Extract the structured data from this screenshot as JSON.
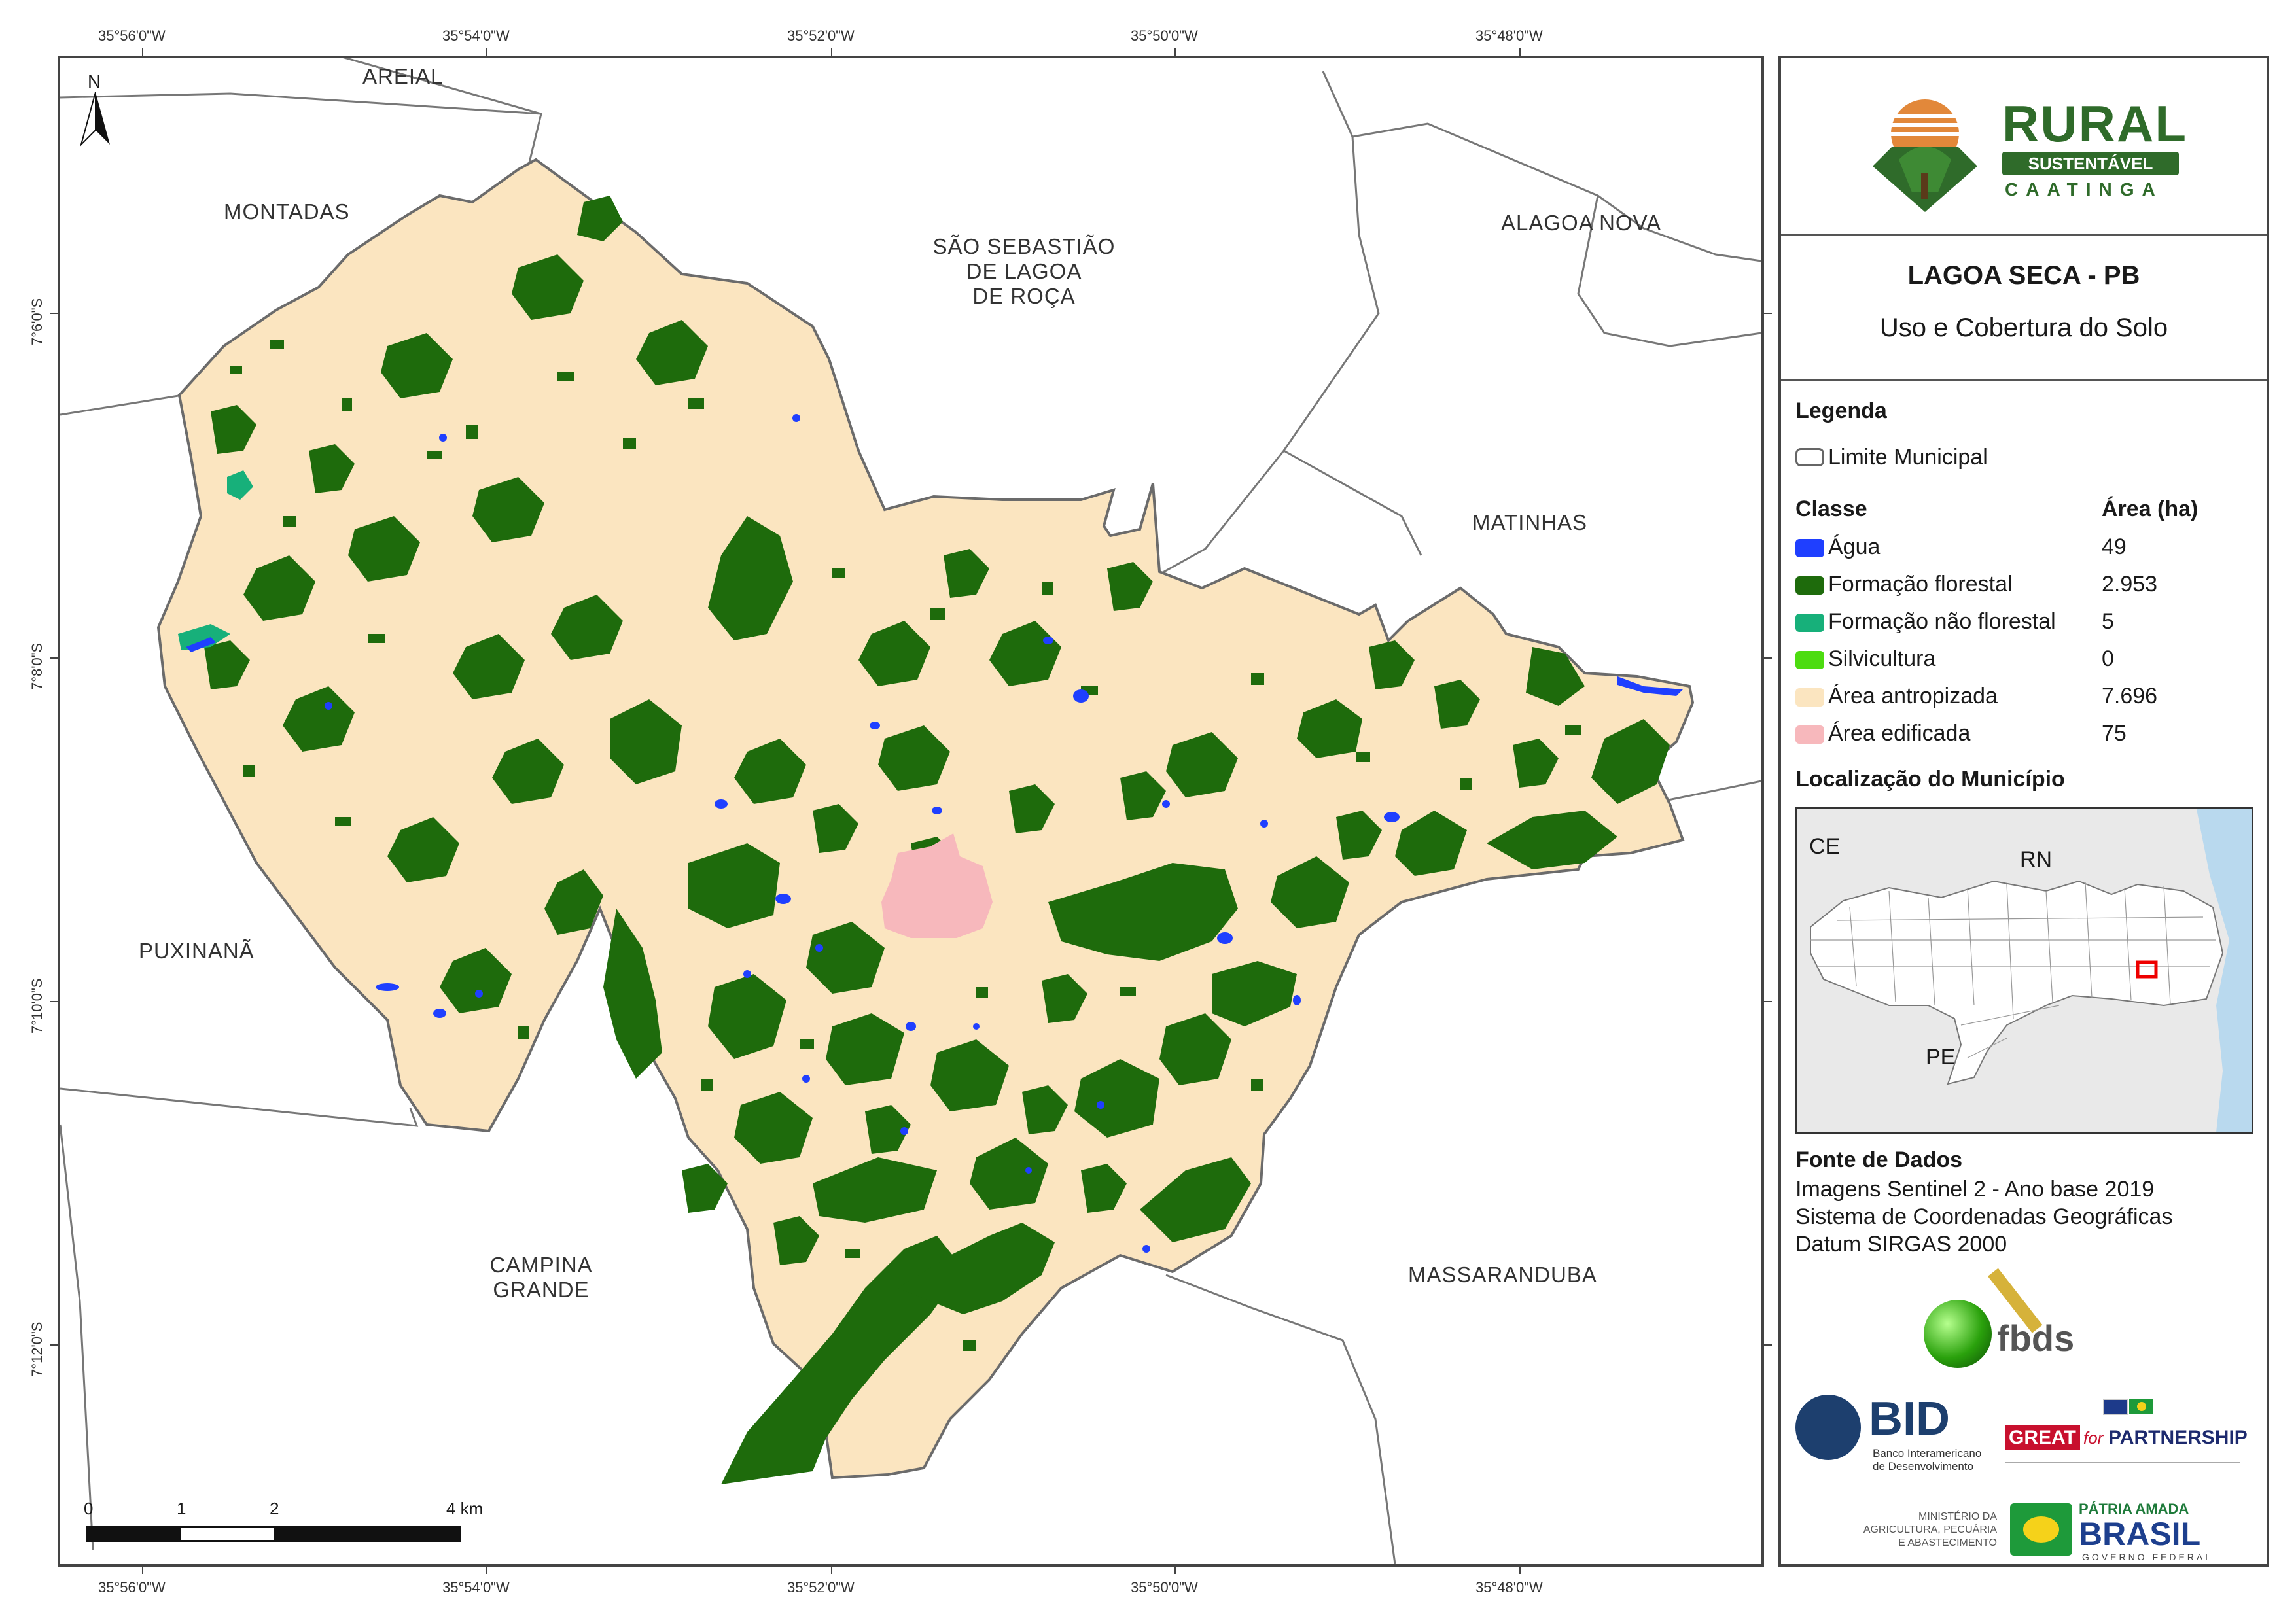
{
  "coords": {
    "top": [
      "35°56'0\"W",
      "35°54'0\"W",
      "35°52'0\"W",
      "35°50'0\"W",
      "35°48'0\"W"
    ],
    "bottom": [
      "35°56'0\"W",
      "35°54'0\"W",
      "35°52'0\"W",
      "35°50'0\"W",
      "35°48'0\"W"
    ],
    "left": [
      "7°6'0\"S",
      "7°8'0\"S",
      "7°10'0\"S",
      "7°12'0\"S"
    ]
  },
  "places": {
    "areial": "AREIAL",
    "montadas": "MONTADAS",
    "sao_sebastiao": [
      "SÃO SEBASTIÃO",
      "DE LAGOA",
      "DE ROÇA"
    ],
    "alagoa_nova": "ALAGOA NOVA",
    "matinhas": "MATINHAS",
    "puxinana": "PUXINANÃ",
    "campina_grande": [
      "CAMPINA",
      "GRANDE"
    ],
    "massaranduba": "MASSARANDUBA"
  },
  "north_arrow": "N",
  "scale_bar": {
    "labels": [
      "0",
      "1",
      "2",
      "4 km"
    ]
  },
  "logo": {
    "rural": "RURAL",
    "sustentavel": "SUSTENTÁVEL",
    "caatinga": "CAATINGA"
  },
  "title": {
    "main": "LAGOA SECA - PB",
    "subtitle": "Uso e Cobertura do Solo"
  },
  "legend": {
    "heading": "Legenda",
    "limit_label": "Limite Municipal",
    "class_header": "Classe",
    "area_header": "Área (ha)",
    "classes": [
      {
        "label": "Água",
        "area": "49",
        "color": "#1f3fff"
      },
      {
        "label": "Formação florestal",
        "area": "2.953",
        "color": "#1e6b0c"
      },
      {
        "label": "Formação não florestal",
        "area": "5",
        "color": "#17b07a"
      },
      {
        "label": "Silvicultura",
        "area": "0",
        "color": "#4ddc10"
      },
      {
        "label": "Área antropizada",
        "area": "7.696",
        "color": "#fbe5c0"
      },
      {
        "label": "Área edificada",
        "area": "75",
        "color": "#f7b8bc"
      }
    ]
  },
  "location": {
    "heading": "Localização do Município",
    "labels": {
      "ce": "CE",
      "rn": "RN",
      "pe": "PE"
    }
  },
  "source": {
    "heading": "Fonte de Dados",
    "lines": [
      "Imagens Sentinel 2 - Ano base 2019",
      "Sistema de Coordenadas Geográficas",
      "Datum SIRGAS 2000"
    ]
  },
  "partners": {
    "fbds": "fbds",
    "bid": "BID",
    "bid_sub": [
      "Banco Interamericano",
      "de Desenvolvimento"
    ],
    "great": "GREAT",
    "great_for": "for",
    "great_partnership": "PARTNERSHIP",
    "mapa": [
      "MINISTÉRIO DA",
      "AGRICULTURA, PECUÁRIA",
      "E ABASTECIMENTO"
    ],
    "patria": [
      "PÁTRIA AMADA",
      "BRASIL",
      "GOVERNO FEDERAL"
    ]
  }
}
